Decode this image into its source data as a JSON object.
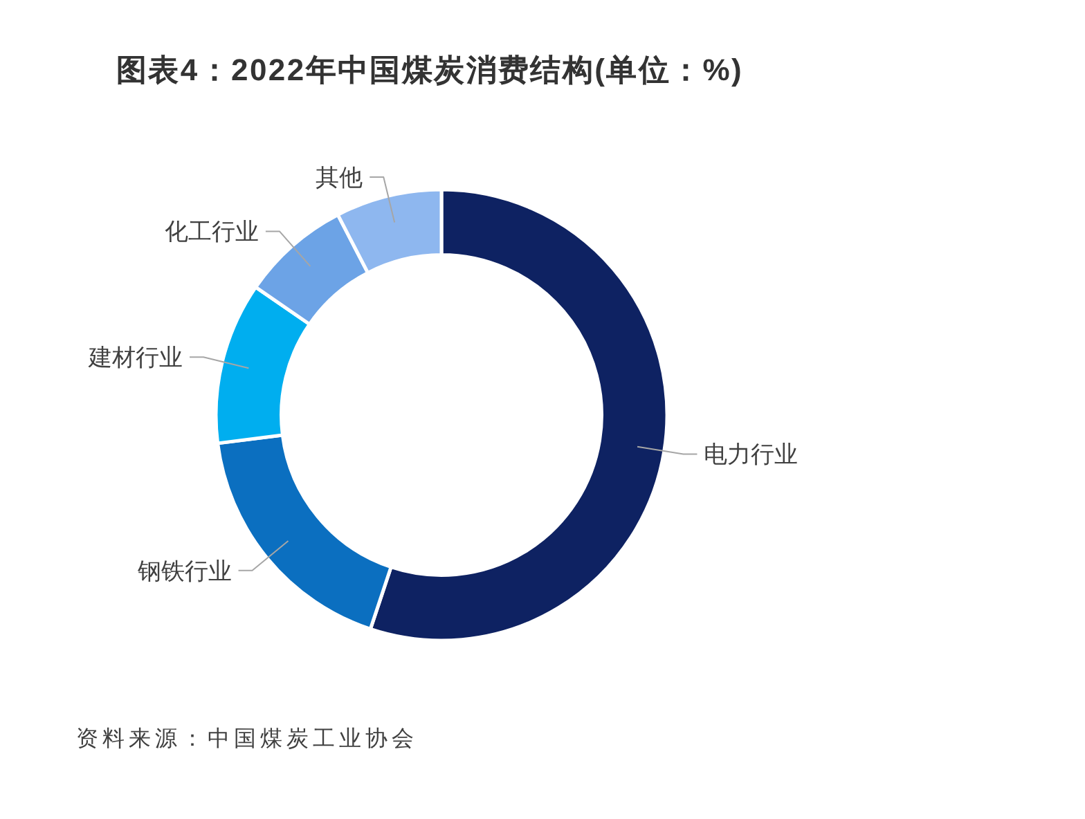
{
  "chart_data": {
    "type": "donut",
    "title": "图表4：2022年中国煤炭消费结构(单位：%)",
    "categories": [
      "电力行业",
      "钢铁行业",
      "建材行业",
      "化工行业",
      "其他"
    ],
    "values": [
      55.1,
      17.9,
      11.6,
      7.8,
      7.6
    ],
    "colors": [
      "#0e2262",
      "#0b6fc0",
      "#00aeef",
      "#6ca3e6",
      "#8eb7ef"
    ],
    "annotations": [
      "资料来源：中国煤炭工业协会"
    ]
  }
}
